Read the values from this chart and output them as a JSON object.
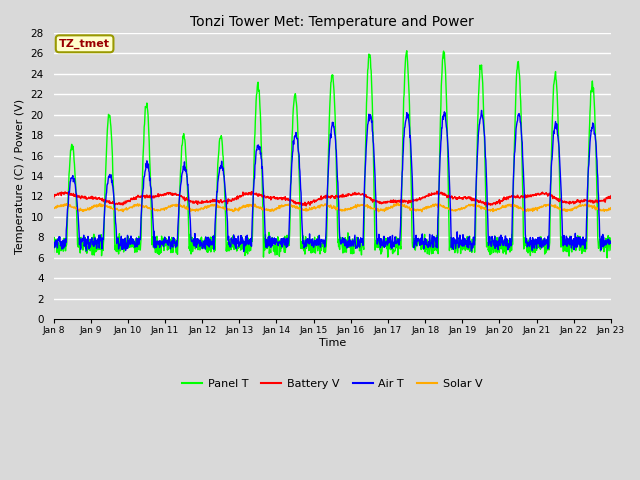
{
  "title": "Tonzi Tower Met: Temperature and Power",
  "xlabel": "Time",
  "ylabel": "Temperature (C) / Power (V)",
  "ylim": [
    0,
    28
  ],
  "yticks": [
    0,
    2,
    4,
    6,
    8,
    10,
    12,
    14,
    16,
    18,
    20,
    22,
    24,
    26,
    28
  ],
  "xtick_labels": [
    "Jan 8",
    "Jan 9",
    "Jan 10",
    "Jan 11",
    "Jan 12",
    "Jan 13",
    "Jan 14",
    "Jan 15",
    "Jan 16",
    "Jan 17",
    "Jan 18",
    "Jan 19",
    "Jan 20",
    "Jan 21",
    "Jan 22",
    "Jan 23"
  ],
  "bg_color": "#d9d9d9",
  "plot_bg_color": "#d9d9d9",
  "grid_color": "#ffffff",
  "annotation_text": "TZ_tmet",
  "annotation_bg": "#ffffcc",
  "annotation_fg": "#990000",
  "annotation_border": "#999900",
  "legend_items": [
    "Panel T",
    "Battery V",
    "Air T",
    "Solar V"
  ],
  "legend_colors": [
    "#00ff00",
    "#ff0000",
    "#0000ff",
    "#ffaa00"
  ],
  "line_width": 1.0,
  "n_days": 15,
  "pts_per_day": 96
}
